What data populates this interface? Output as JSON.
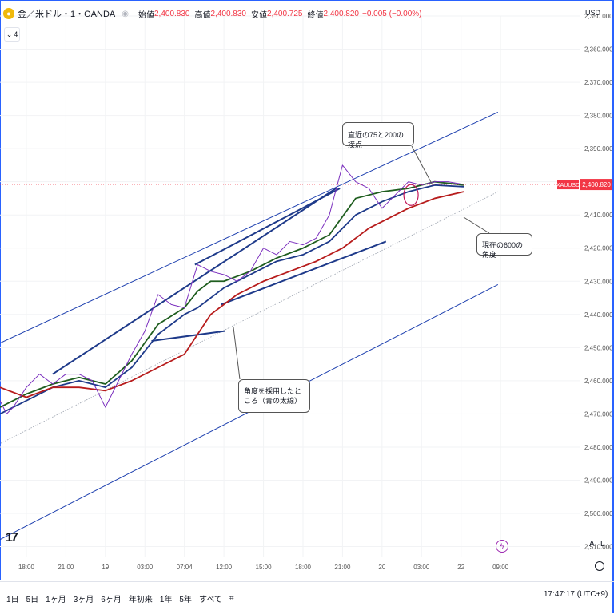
{
  "header": {
    "symbol": "金／米ドル・1・OANDA",
    "ohlc": [
      {
        "label": "始値",
        "value": "2,400.830"
      },
      {
        "label": "高値",
        "value": "2,400.830"
      },
      {
        "label": "安値",
        "value": "2,400.725"
      },
      {
        "label": "終値",
        "value": "2,400.820"
      }
    ],
    "change": "−0.005 (−0.00%)",
    "indicator_count": "4",
    "currency": "USD"
  },
  "chart_data": {
    "type": "line",
    "symbol": "XAUUSD",
    "last_price": 2400.82,
    "last_price_label": "2,400.820",
    "y_axis_inverted": true,
    "ylim": [
      2350,
      2513
    ],
    "y_ticks": [
      "2,350.000",
      "2,360.000",
      "2,370.000",
      "2,380.000",
      "2,390.000",
      "2,400.000",
      "2,410.000",
      "2,420.000",
      "2,430.000",
      "2,440.000",
      "2,450.000",
      "2,460.000",
      "2,470.000",
      "2,480.000",
      "2,490.000",
      "2,500.000",
      "2,510.000"
    ],
    "y_tick_values": [
      2350,
      2360,
      2370,
      2380,
      2390,
      2400,
      2410,
      2420,
      2430,
      2440,
      2450,
      2460,
      2470,
      2480,
      2490,
      2500,
      2510
    ],
    "x_ticks": [
      "18:00",
      "21:00",
      "19",
      "03:00",
      "07:04",
      "12:00",
      "15:00",
      "18:00",
      "21:00",
      "20",
      "03:00",
      "22",
      "09:00"
    ],
    "x_tick_values": [
      3,
      6,
      9,
      12,
      15,
      18,
      21,
      24,
      27,
      30,
      33,
      36,
      39
    ],
    "xlim": [
      1,
      45
    ],
    "price_x": [
      1,
      1.5,
      2,
      3,
      4,
      5,
      6,
      7,
      8,
      9,
      10,
      11,
      12,
      13,
      14,
      15,
      16,
      17,
      18,
      19,
      20,
      21,
      22,
      23,
      24,
      25,
      26,
      27,
      28,
      29,
      30,
      31,
      32,
      33,
      34,
      35,
      36.2
    ],
    "price_y": [
      2466,
      2470,
      2468,
      2462,
      2458,
      2461,
      2458,
      2458,
      2460,
      2468,
      2460,
      2452,
      2445,
      2434,
      2437,
      2438,
      2425,
      2427,
      2428,
      2430,
      2427,
      2420,
      2422,
      2418,
      2419,
      2417,
      2410,
      2395,
      2400,
      2402,
      2408,
      2404,
      2400,
      2401,
      2400,
      2400,
      2400.8
    ],
    "series": [
      {
        "name": "",
        "color": "#1e3a8a",
        "x": [
          1,
          3,
          5,
          7,
          9,
          11,
          13,
          15,
          16,
          18,
          20,
          22,
          24,
          26,
          28,
          30,
          32,
          34,
          36.2
        ],
        "y": [
          2470,
          2466,
          2462,
          2460,
          2462,
          2456,
          2446,
          2440,
          2438,
          2432,
          2428,
          2424,
          2422,
          2418,
          2410,
          2406,
          2403,
          2401,
          2401.5
        ]
      },
      {
        "name": "",
        "color": "#1f5e1f",
        "x": [
          1,
          3,
          5,
          7,
          9,
          11,
          13,
          15,
          16,
          17,
          18,
          20,
          22,
          24,
          26,
          28,
          30,
          32,
          34,
          36.2
        ],
        "y": [
          2468,
          2464,
          2461,
          2459,
          2461,
          2454,
          2443,
          2438,
          2433,
          2430,
          2430,
          2427,
          2423,
          2420,
          2416,
          2405,
          2403,
          2402,
          2400,
          2401
        ]
      },
      {
        "name": "",
        "color": "#b71c1c",
        "x": [
          1,
          3,
          5,
          7,
          9,
          11,
          13,
          15,
          17,
          19,
          21,
          23,
          25,
          27,
          29,
          30,
          32,
          34,
          36.2
        ],
        "y": [
          2462,
          2465,
          2462,
          2462,
          2463,
          2460,
          2456,
          2452,
          2440,
          2434,
          2430,
          2427,
          2424,
          2420,
          2414,
          2412,
          2408,
          2405,
          2403
        ]
      }
    ],
    "trendlines": [
      {
        "x": [
          -3,
          38.8
        ],
        "y": [
          2456,
          2379
        ],
        "color": "#1e40af",
        "width": 1
      },
      {
        "x": [
          -3,
          38.8
        ],
        "y": [
          2516,
          2431
        ],
        "color": "#1e40af",
        "width": 1
      },
      {
        "x": [
          -3,
          38.8
        ],
        "y": [
          2487,
          2403
        ],
        "color": "#9ca3af",
        "width": 0.8,
        "dashed": true
      },
      {
        "x": [
          5,
          26.5
        ],
        "y": [
          2458,
          2402
        ],
        "color": "#1e3a8a",
        "width": 2
      },
      {
        "x": [
          15.8,
          26.8
        ],
        "y": [
          2425,
          2402
        ],
        "color": "#1e3a8a",
        "width": 2
      },
      {
        "x": [
          17.8,
          30.3
        ],
        "y": [
          2437,
          2418
        ],
        "color": "#1e3a8a",
        "width": 2
      },
      {
        "x": [
          12.5,
          18.1
        ],
        "y": [
          2448,
          2445
        ],
        "color": "#1e3a8a",
        "width": 2
      }
    ],
    "highlight_circle": {
      "x": 32.2,
      "y": 2404
    }
  },
  "annotations": [
    {
      "id": "cross-75-200",
      "text": "直近の75と200の接点"
    },
    {
      "id": "angle-600",
      "text": "現在の600の角度"
    },
    {
      "id": "blue-thick",
      "text": "角度を採用したところ（青の太線）"
    }
  ],
  "bottom": {
    "ranges": [
      "1日",
      "5日",
      "1ヶ月",
      "3ヶ月",
      "6ヶ月",
      "年初来",
      "1年",
      "5年",
      "すべて"
    ],
    "clock": "17:47:17 (UTC+9)",
    "scale_auto": "A",
    "scale_log": "L",
    "logo": "17"
  },
  "colors": {
    "accent": "#2962ff",
    "price_line": "#7b2fbe",
    "down": "#f23645"
  }
}
